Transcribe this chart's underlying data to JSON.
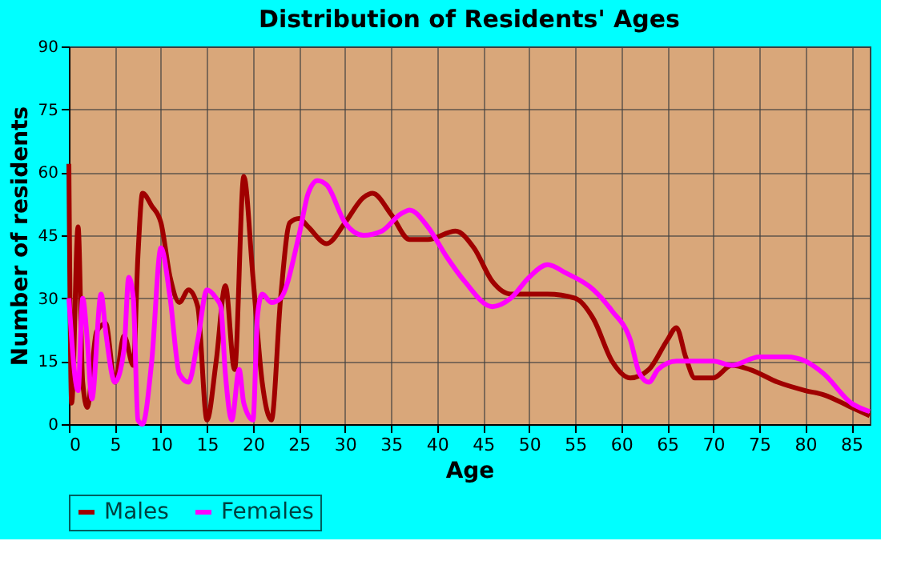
{
  "chart_data": {
    "type": "line",
    "title": "Distribution of Residents' Ages",
    "xlabel": "Age",
    "ylabel": "Number of residents",
    "xlim": [
      0,
      87
    ],
    "xticks": [
      0,
      5,
      10,
      15,
      20,
      25,
      30,
      35,
      40,
      45,
      50,
      55,
      60,
      65,
      70,
      75,
      80,
      85
    ],
    "ylim": [
      0,
      90
    ],
    "yticks": [
      0,
      15,
      30,
      45,
      60,
      75,
      90
    ],
    "grid": true,
    "legend": "bottom",
    "marker": "none",
    "line_style": "solid",
    "series": [
      {
        "name": "Males",
        "color": "#a00000",
        "x": [
          0,
          0.3,
          1,
          1.5,
          2,
          3,
          4,
          5,
          6,
          7,
          7.5,
          8,
          9,
          10,
          11,
          12,
          13,
          14,
          15,
          16,
          17,
          18,
          19,
          20,
          21,
          22,
          23,
          24,
          25,
          26,
          28,
          30,
          32,
          33,
          35,
          37,
          39,
          42,
          44,
          46,
          48,
          50,
          52,
          55,
          57,
          59,
          61,
          63,
          65,
          66,
          67,
          68,
          70,
          72,
          74,
          77,
          80,
          82,
          85,
          87
        ],
        "values": [
          62,
          5,
          47,
          10,
          4,
          22,
          24,
          10,
          21,
          14,
          40,
          55,
          52,
          48,
          35,
          29,
          32,
          28,
          1,
          15,
          33,
          13,
          59,
          35,
          10,
          1,
          30,
          48,
          49,
          47,
          43,
          48,
          54,
          55,
          50,
          44,
          44,
          46,
          42,
          34,
          31,
          31,
          31,
          30,
          25,
          15,
          11,
          13,
          20,
          23,
          16,
          11,
          11,
          14,
          13,
          10,
          8,
          7,
          4,
          2
        ]
      },
      {
        "name": "Females",
        "color": "#ff00ff",
        "x": [
          0,
          1,
          1.5,
          2,
          2.5,
          3.5,
          4,
          5,
          6,
          6.5,
          7,
          7.5,
          8,
          9,
          10,
          11,
          12,
          13,
          14,
          15,
          16,
          16.5,
          17,
          17.7,
          18.5,
          19,
          20,
          20.5,
          21,
          22,
          23,
          25,
          26,
          27,
          28,
          30,
          32,
          34,
          36,
          37,
          39,
          41,
          43,
          46,
          48,
          50,
          52,
          54,
          57,
          59,
          61,
          62,
          63,
          64,
          66,
          70,
          72,
          75,
          78,
          80,
          82,
          85,
          87
        ],
        "values": [
          30,
          8,
          30,
          20,
          6,
          31,
          22,
          10,
          18,
          35,
          30,
          1,
          0,
          15,
          42,
          30,
          12,
          10,
          20,
          32,
          30,
          28,
          12,
          1,
          13,
          5,
          1,
          26,
          31,
          29,
          30,
          45,
          55,
          58,
          57,
          48,
          45,
          46,
          50,
          51,
          47,
          40,
          34,
          28,
          30,
          35,
          38,
          36,
          32,
          27,
          20,
          12,
          10,
          13,
          15,
          15,
          14,
          16,
          16,
          15,
          12,
          5,
          3
        ]
      }
    ]
  }
}
